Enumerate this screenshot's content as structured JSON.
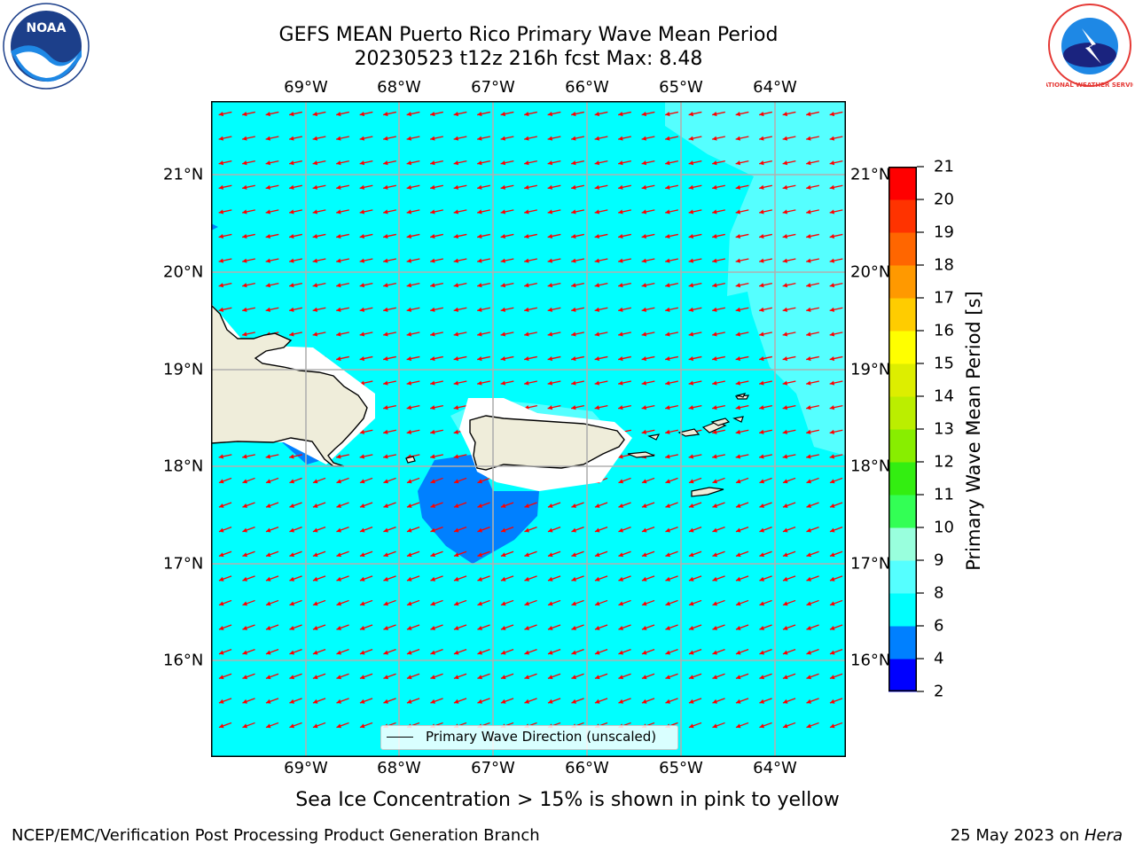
{
  "title": "GEFS MEAN Puerto Rico Primary Wave Mean Period",
  "subtitle_line": "20230523 t12z 216h fcst   Max: 8.48",
  "lon_ticks": [
    "69°W",
    "68°W",
    "67°W",
    "66°W",
    "65°W",
    "64°W"
  ],
  "lat_ticks": [
    "21°N",
    "20°N",
    "19°N",
    "18°N",
    "17°N",
    "16°N"
  ],
  "colorbar": {
    "label": "Primary Wave Mean Period [s]",
    "levels": [
      "2",
      "4",
      "6",
      "8",
      "9",
      "10",
      "11",
      "12",
      "13",
      "14",
      "15",
      "16",
      "17",
      "18",
      "19",
      "20",
      "21"
    ],
    "colors": [
      "#0000ff",
      "#0080ff",
      "#00ffff",
      "#55ffff",
      "#99ffdd",
      "#33ff55",
      "#33ee11",
      "#88ee00",
      "#bbee00",
      "#ddee00",
      "#ffff00",
      "#ffcc00",
      "#ff9900",
      "#ff6600",
      "#ff3300",
      "#ff0000"
    ]
  },
  "legend": {
    "label": "Primary Wave Direction (unscaled)"
  },
  "sea_ice_note": "Sea Ice Concentration > 15% is shown in pink to yellow",
  "footer": {
    "left": "NCEP/EMC/Verification Post Processing Product Generation Branch",
    "right_prefix": "25 May 2023 on ",
    "right_host": "Hera"
  },
  "logos": {
    "left": "NOAA",
    "right": "NATIONAL WEATHER SERVICE"
  },
  "map": {
    "ocean_color": "#00ffff",
    "light_region_color": "#55ffff",
    "dark_region_color": "#0080ff",
    "land_color": "#efedda",
    "arrow_color": "#ff0000"
  }
}
